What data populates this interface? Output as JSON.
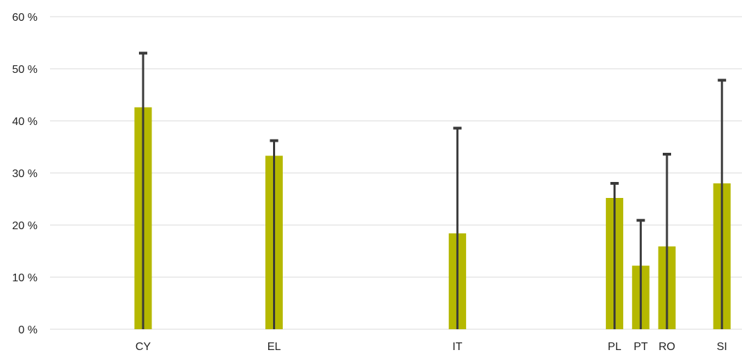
{
  "chart_data": {
    "type": "bar",
    "title": "",
    "xlabel": "",
    "ylabel": "",
    "ylim": [
      0,
      60
    ],
    "yticks": [
      0,
      10,
      20,
      30,
      40,
      50,
      60
    ],
    "ytick_suffix": " %",
    "grid": true,
    "legend": "none",
    "categories": [
      {
        "label": "CY",
        "x": 0
      },
      {
        "label": "EL",
        "x": 1
      },
      {
        "label": "IT",
        "x": 2.4
      },
      {
        "label": "PL",
        "x": 3.6
      },
      {
        "label": "PT",
        "x": 3.8
      },
      {
        "label": "RO",
        "x": 4.0
      },
      {
        "label": "SI",
        "x": 4.42
      }
    ],
    "series": [
      {
        "values": [
          42.6,
          33.3,
          18.4,
          25.2,
          12.2,
          15.9,
          28.0
        ],
        "error_upper": [
          53.0,
          36.2,
          38.6,
          28.0,
          20.9,
          33.6,
          47.8
        ],
        "error_lower": [
          0,
          0,
          0,
          0,
          0,
          0,
          0
        ]
      }
    ],
    "colors": {
      "bar": "#b5b800",
      "error": "#3a3a3a",
      "grid": "#d9d9d9",
      "text": "#222222"
    }
  }
}
